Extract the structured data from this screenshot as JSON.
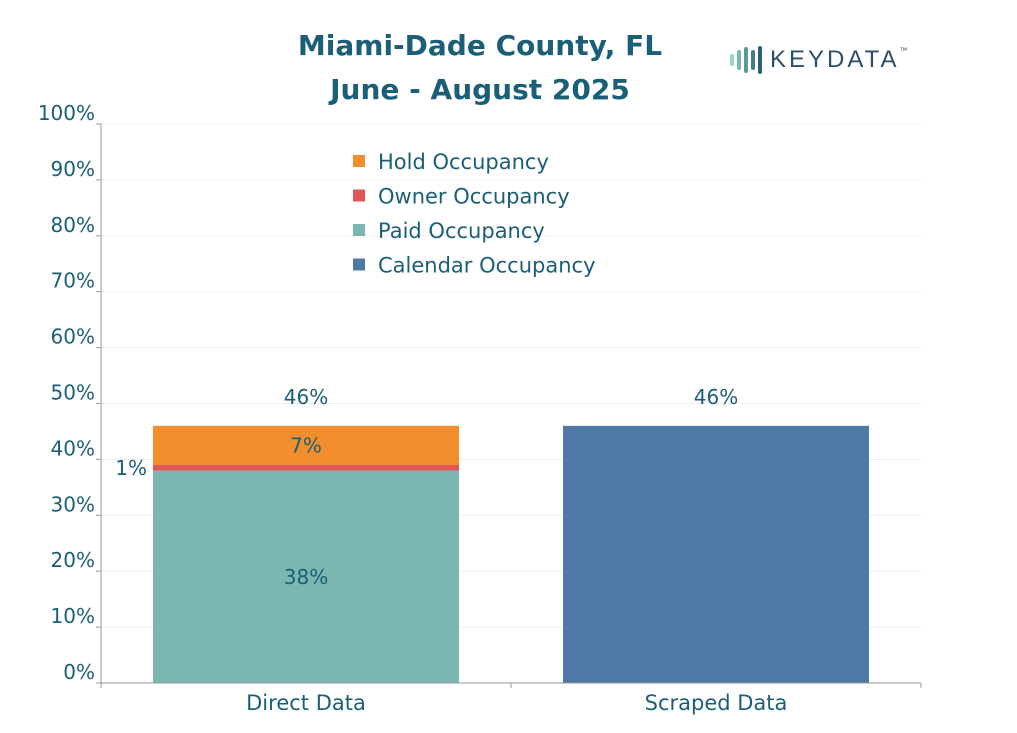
{
  "chart_data": {
    "type": "bar",
    "stacked": true,
    "title": [
      "Miami-Dade County, FL",
      "June - August 2025"
    ],
    "categories": [
      "Direct Data",
      "Scraped Data"
    ],
    "series": [
      {
        "name": "Paid Occupancy",
        "color": "#7bb6b1",
        "values": [
          38,
          0
        ],
        "labels": [
          "38%",
          ""
        ]
      },
      {
        "name": "Owner Occupancy",
        "color": "#e15759",
        "values": [
          1,
          0
        ],
        "labels": [
          "1%",
          ""
        ]
      },
      {
        "name": "Hold Occupancy",
        "color": "#f28e2b",
        "values": [
          7,
          0
        ],
        "labels": [
          "7%",
          ""
        ]
      },
      {
        "name": "Calendar Occupancy",
        "color": "#4e79a7",
        "values": [
          0,
          46
        ],
        "labels": [
          "",
          ""
        ]
      }
    ],
    "totals": [
      46,
      46
    ],
    "total_labels": [
      "46%",
      "46%"
    ],
    "legend_order": [
      "Hold Occupancy",
      "Owner Occupancy",
      "Paid Occupancy",
      "Calendar Occupancy"
    ],
    "legend_position": "top-center",
    "ylim": [
      0,
      100
    ],
    "yticks": [
      0,
      10,
      20,
      30,
      40,
      50,
      60,
      70,
      80,
      90,
      100
    ],
    "ytick_labels": [
      "0%",
      "10%",
      "20%",
      "30%",
      "40%",
      "50%",
      "60%",
      "70%",
      "80%",
      "90%",
      "100%"
    ],
    "xlabel": "",
    "ylabel": "",
    "grid": true
  },
  "logo": {
    "text": "KEYDATA",
    "tm": "™"
  },
  "colors": {
    "title": "#1b5e78",
    "axis_text": "#1b5e78",
    "grid": "#eeeeee",
    "axis": "#999999"
  }
}
